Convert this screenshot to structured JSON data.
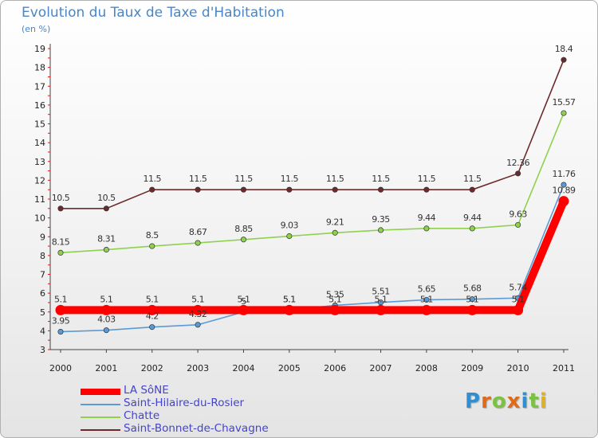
{
  "header": {
    "title": "Evolution du Taux de Taxe d'Habitation",
    "subtitle": "(en %)"
  },
  "brand": {
    "text": "Proxiti",
    "letter_colors": [
      "#2f8fd0",
      "#e06a1a",
      "#7cc242",
      "#e06a1a",
      "#2f8fd0",
      "#7cc242",
      "#e0b020"
    ]
  },
  "chart_data": {
    "type": "line",
    "title": "Evolution du Taux de Taxe d'Habitation",
    "subtitle": "(en %)",
    "xlabel": "",
    "ylabel": "",
    "categories": [
      "2000",
      "2001",
      "2002",
      "2003",
      "2004",
      "2005",
      "2006",
      "2007",
      "2008",
      "2009",
      "2010",
      "2011"
    ],
    "ylim": [
      3,
      19
    ],
    "yticks": [
      "3",
      "4",
      "5",
      "6",
      "7",
      "8",
      "9",
      "10",
      "11",
      "12",
      "13",
      "14",
      "15",
      "16",
      "17",
      "18",
      "19"
    ],
    "grid": false,
    "legend_position": "bottom-left",
    "series": [
      {
        "name": "Saint-Bonnet-de-Chavagne",
        "color": "#6e2a2a",
        "values": [
          10.5,
          10.5,
          11.5,
          11.5,
          11.5,
          11.5,
          11.5,
          11.5,
          11.5,
          11.5,
          12.36,
          18.4
        ],
        "labels": [
          "10.5",
          "10.5",
          "11.5",
          "11.5",
          "11.5",
          "11.5",
          "11.5",
          "11.5",
          "11.5",
          "11.5",
          "12.36",
          "18.4"
        ]
      },
      {
        "name": "Chatte",
        "color": "#8fd14f",
        "values": [
          8.15,
          8.31,
          8.5,
          8.67,
          8.85,
          9.03,
          9.21,
          9.35,
          9.44,
          9.44,
          9.63,
          15.57
        ],
        "labels": [
          "8.15",
          "8.31",
          "8.5",
          "8.67",
          "8.85",
          "9.03",
          "9.21",
          "9.35",
          "9.44",
          "9.44",
          "9.63",
          "15.57"
        ]
      },
      {
        "name": "Saint-Hilaire-du-Rosier",
        "color": "#5b9bd5",
        "values": [
          3.95,
          4.03,
          4.2,
          4.32,
          5,
          5.1,
          5.35,
          5.51,
          5.65,
          5.68,
          5.74,
          11.76
        ],
        "labels": [
          "3.95",
          "4.03",
          "4.2",
          "4.32",
          "5",
          "5.1",
          "5.35",
          "5.51",
          "5.65",
          "5.68",
          "5.74",
          "11.76"
        ]
      },
      {
        "name": "LA SôNE",
        "color": "#ff0000",
        "values": [
          5.1,
          5.1,
          5.1,
          5.1,
          5.1,
          5.1,
          5.1,
          5.1,
          5.1,
          5.1,
          5.1,
          10.89
        ],
        "labels": [
          "5.1",
          "5.1",
          "5.1",
          "5.1",
          "5.1",
          "5.1",
          "5.1",
          "5.1",
          "5.1",
          "5.1",
          "5.1",
          "10.89"
        ]
      }
    ],
    "legend": [
      "LA SôNE",
      "Saint-Hilaire-du-Rosier",
      "Chatte",
      "Saint-Bonnet-de-Chavagne"
    ]
  }
}
